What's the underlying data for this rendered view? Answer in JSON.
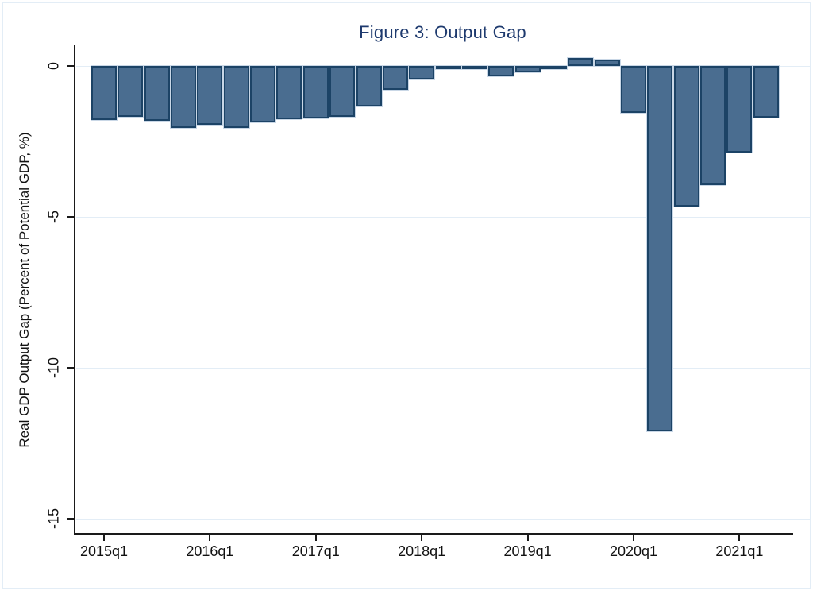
{
  "figure": {
    "title": "Figure 3: Output Gap",
    "title_color": "#1e3a6e",
    "background_color": "#ffffff",
    "border_color": "#e3edf6"
  },
  "chart_data": {
    "type": "bar",
    "title": "Figure 3: Output Gap",
    "xlabel": "",
    "ylabel": "Real GDP Output Gap (Percent of Potential GDP, %)",
    "categories": [
      "2015q1",
      "2015q2",
      "2015q3",
      "2015q4",
      "2016q1",
      "2016q2",
      "2016q3",
      "2016q4",
      "2017q1",
      "2017q2",
      "2017q3",
      "2017q4",
      "2018q1",
      "2018q2",
      "2018q3",
      "2018q4",
      "2019q1",
      "2019q2",
      "2019q3",
      "2019q4",
      "2020q1",
      "2020q2",
      "2020q3",
      "2020q4",
      "2021q1",
      "2021q2"
    ],
    "values": [
      -1.78,
      -1.68,
      -1.82,
      -2.05,
      -1.95,
      -2.05,
      -1.88,
      -1.77,
      -1.73,
      -1.68,
      -1.35,
      -0.8,
      -0.45,
      -0.1,
      -0.1,
      -0.33,
      -0.2,
      -0.08,
      0.26,
      0.2,
      -1.54,
      -12.1,
      -4.66,
      -3.95,
      -2.86,
      -1.72
    ],
    "x_tick_labels": [
      "2015q1",
      "2016q1",
      "2017q1",
      "2018q1",
      "2019q1",
      "2020q1",
      "2021q1"
    ],
    "x_tick_category_indexes": [
      0,
      4,
      8,
      12,
      16,
      20,
      24
    ],
    "y_tick_labels": [
      "0",
      "-5",
      "-10",
      "-15"
    ],
    "y_tick_values": [
      0,
      -5,
      -10,
      -15
    ],
    "ylim": [
      -15.5,
      0.7
    ],
    "grid": true,
    "legend_position": "none",
    "bar_color": "#4a6d90",
    "bar_border_color": "#1c4366",
    "gridline_color": "#e3edf6"
  }
}
